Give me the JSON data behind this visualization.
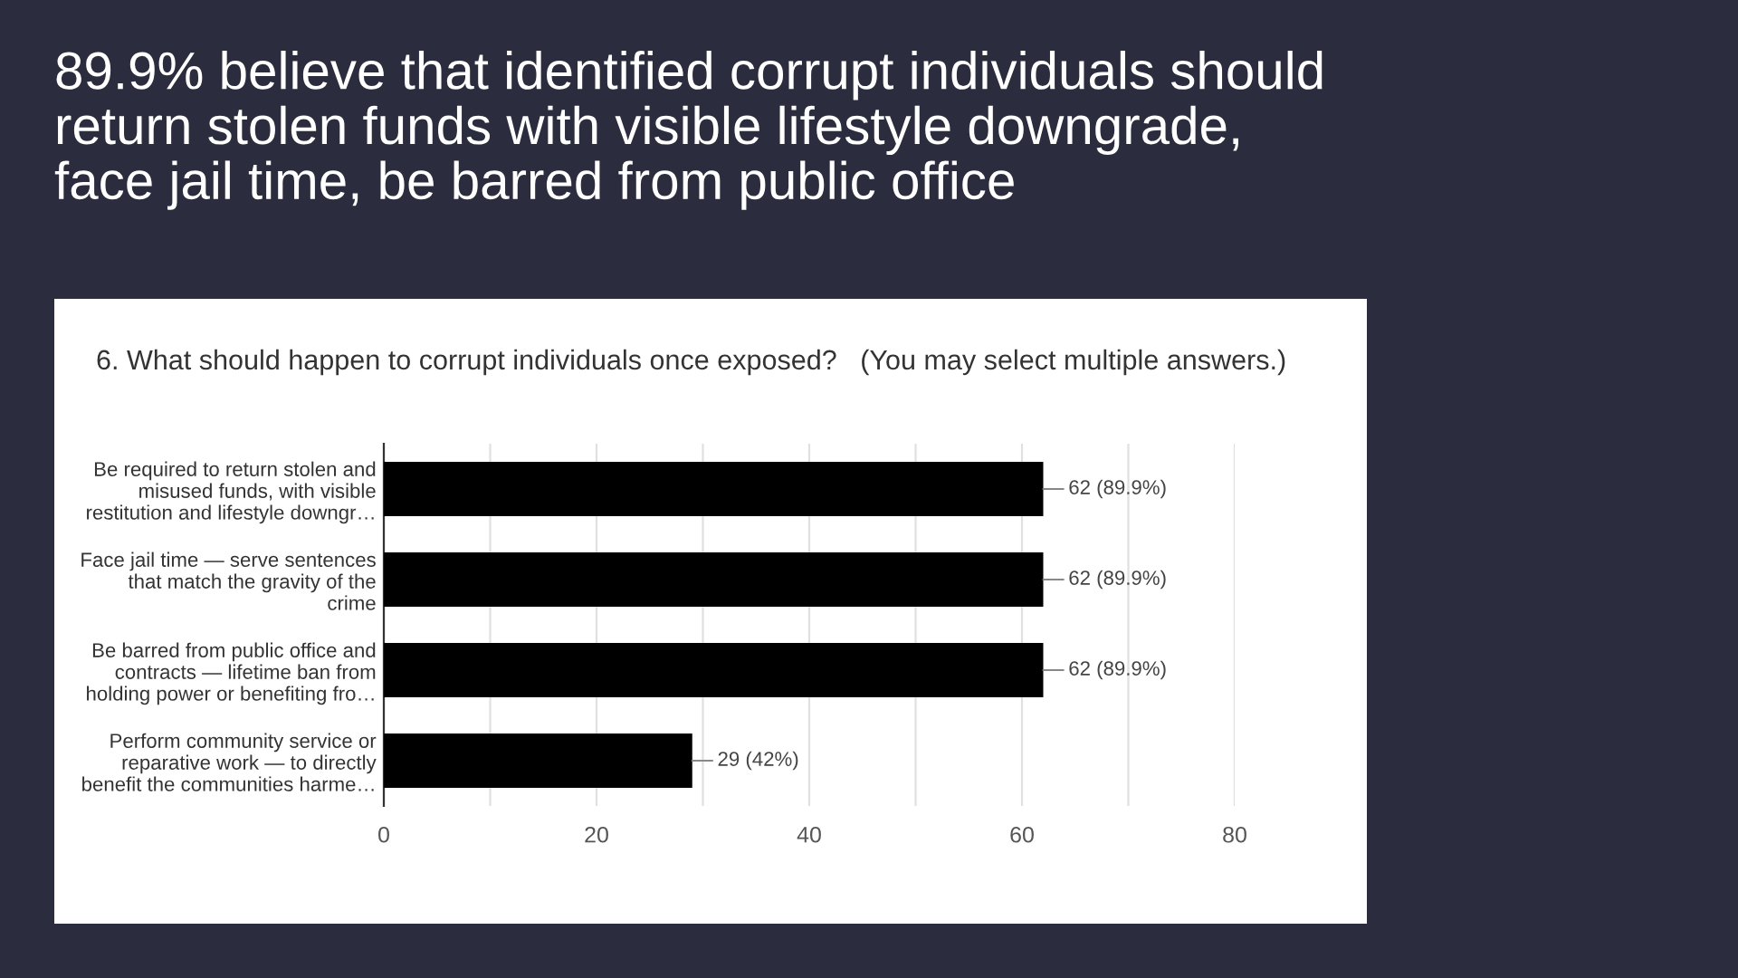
{
  "chart_data": {
    "type": "bar",
    "orientation": "horizontal",
    "title": "89.9% believe that identified corrupt individuals should\nreturn stolen funds with visible lifestyle downgrade,\nface jail time, be barred from public office",
    "subtitle": "6. What should happen to corrupt individuals once exposed?   (You may select multiple answers.)",
    "categories": [
      "Be required to return stolen and\nmisused funds, with visible\nrestitution and lifestyle downgr…",
      "Face jail time — serve sentences\nthat match the gravity of the\ncrime",
      "Be barred from public office and\ncontracts — lifetime ban from\nholding power or benefiting fro…",
      "Perform community service or\nreparative work — to directly\nbenefit the communities harme…"
    ],
    "values": [
      62,
      62,
      62,
      29
    ],
    "value_labels": [
      "62 (89.9%)",
      "62 (89.9%)",
      "62 (89.9%)",
      "29 (42%)"
    ],
    "color": "#000000",
    "xlim": [
      0,
      80
    ],
    "xticks": [
      0,
      {
        "value": 10,
        "label": null
      },
      20,
      {
        "value": 30,
        "label": null
      },
      40,
      {
        "value": 50,
        "label": null
      },
      60,
      {
        "value": 70,
        "label": null
      },
      80
    ],
    "grid": "x"
  }
}
